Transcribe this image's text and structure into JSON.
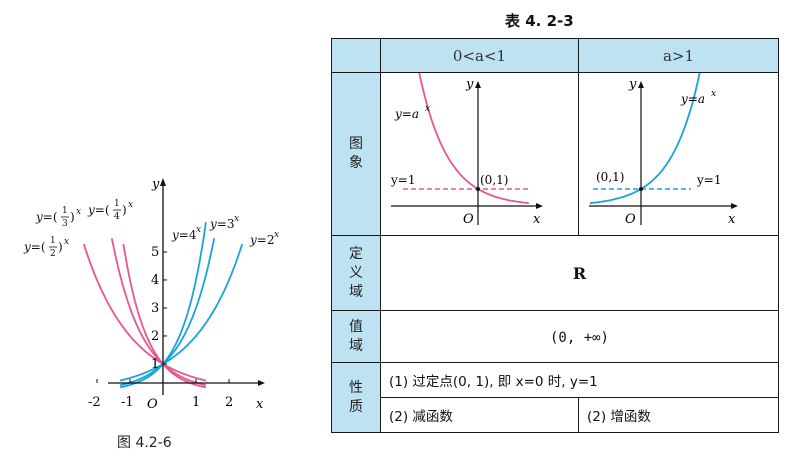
{
  "figure": {
    "caption": "图 4.2-6",
    "axis_y": "y",
    "axis_x": "x",
    "origin": "O",
    "x_ticks": [
      "-2",
      "-1",
      "1",
      "2"
    ],
    "y_ticks": [
      "1",
      "2",
      "3",
      "4",
      "5"
    ],
    "curve_labels": {
      "half": "y=(1/2)^x",
      "third": "y=(1/3)^x",
      "quarter": "y=(1/4)^x",
      "four": "y=4^x",
      "three": "y=3^x",
      "two": "y=2^x"
    },
    "colors": {
      "decreasing": "#e8558f",
      "increasing": "#1aa3d9",
      "dashed_pink": "#e8558f",
      "dashed_blue": "#1aa3d9"
    }
  },
  "table": {
    "title": "表 4. 2-3",
    "col1_head": "0<a<1",
    "col2_head": "a>1",
    "row_labels": {
      "graph": [
        "图",
        "象"
      ],
      "domain": [
        "定",
        "义",
        "域"
      ],
      "range": [
        "值",
        "域"
      ],
      "property": [
        "性",
        "质"
      ]
    },
    "graph_small": {
      "left_curve_label": "y=a^x",
      "right_curve_label": "y=a^x",
      "y1_label": "y=1",
      "point_label": "(0,1)",
      "origin": "O",
      "x_axis": "x",
      "y_axis": "y"
    },
    "domain_value": "R",
    "range_value": "(0, +∞)",
    "property_1": "(1) 过定点(0, 1), 即 x=0 时, y=1",
    "property_2_left": "(2) 减函数",
    "property_2_right": "(2) 增函数"
  }
}
